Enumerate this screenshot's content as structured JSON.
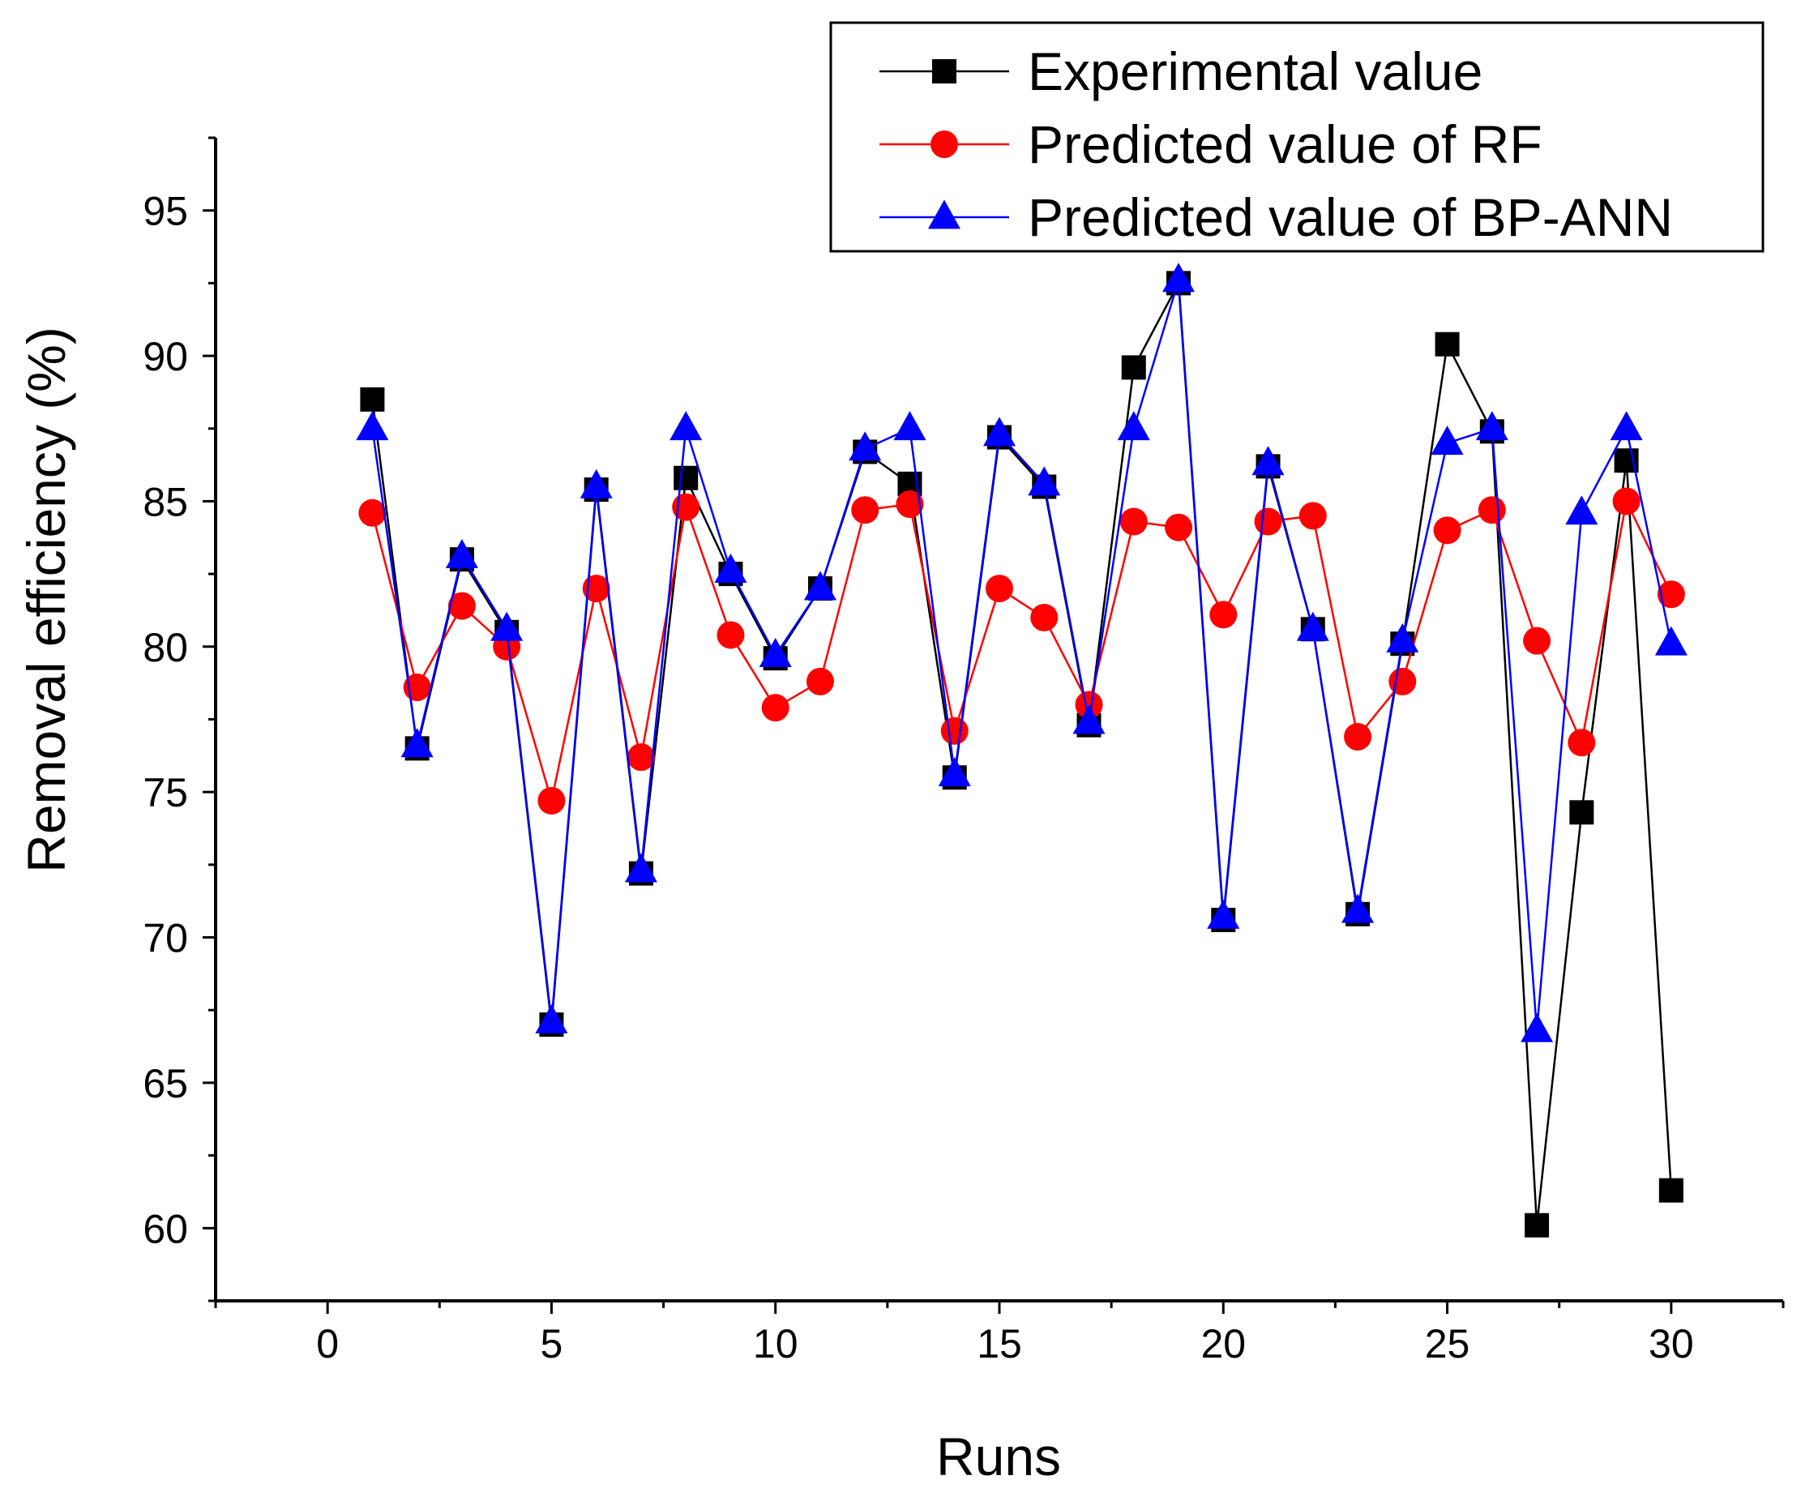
{
  "chart_data": {
    "type": "line",
    "title": "",
    "xlabel": "Runs",
    "ylabel": "Removal efficiency (%)",
    "xlim": [
      -2.5,
      32.5
    ],
    "ylim": [
      57.5,
      97.5
    ],
    "x_ticks": [
      0,
      5,
      10,
      15,
      20,
      25,
      30
    ],
    "y_ticks": [
      60,
      65,
      70,
      75,
      80,
      85,
      90,
      95
    ],
    "x_tick_labels": [
      "0",
      "5",
      "10",
      "15",
      "20",
      "25",
      "30"
    ],
    "y_tick_labels": [
      "60",
      "65",
      "70",
      "75",
      "80",
      "85",
      "90",
      "95"
    ],
    "grid": false,
    "legend_position": "top-right",
    "x": [
      1,
      2,
      3,
      4,
      5,
      6,
      7,
      8,
      9,
      10,
      11,
      12,
      13,
      14,
      15,
      16,
      17,
      18,
      19,
      20,
      21,
      22,
      23,
      24,
      25,
      26,
      27,
      28,
      29,
      30
    ],
    "series": [
      {
        "name": "Experimental value",
        "color": "#000000",
        "marker": "square",
        "values": [
          88.5,
          76.5,
          83.0,
          80.5,
          67.0,
          85.4,
          72.2,
          85.8,
          82.5,
          79.6,
          82.0,
          86.7,
          85.6,
          75.5,
          87.2,
          85.5,
          77.3,
          89.6,
          92.5,
          70.6,
          86.2,
          80.6,
          70.8,
          80.1,
          90.4,
          87.4,
          60.1,
          74.3,
          86.4,
          61.3
        ]
      },
      {
        "name": "Predicted value of RF",
        "color": "#ff0000",
        "marker": "circle",
        "values": [
          84.6,
          78.6,
          81.4,
          80.0,
          74.7,
          82.0,
          76.2,
          84.8,
          80.4,
          77.9,
          78.8,
          84.7,
          84.9,
          77.1,
          82.0,
          81.0,
          78.0,
          84.3,
          84.1,
          81.1,
          84.3,
          84.5,
          76.9,
          78.8,
          84.0,
          84.7,
          80.2,
          76.7,
          85.0,
          81.8
        ]
      },
      {
        "name": "Predicted value of BP-ANN",
        "color": "#0000ff",
        "marker": "triangle",
        "values": [
          87.5,
          76.6,
          83.1,
          80.6,
          67.1,
          85.5,
          72.3,
          87.5,
          82.6,
          79.7,
          82.0,
          86.8,
          87.5,
          75.6,
          87.3,
          85.6,
          77.4,
          87.5,
          92.6,
          70.7,
          86.3,
          80.6,
          70.9,
          80.2,
          87.0,
          87.5,
          66.8,
          84.6,
          87.5,
          80.1
        ]
      }
    ]
  }
}
